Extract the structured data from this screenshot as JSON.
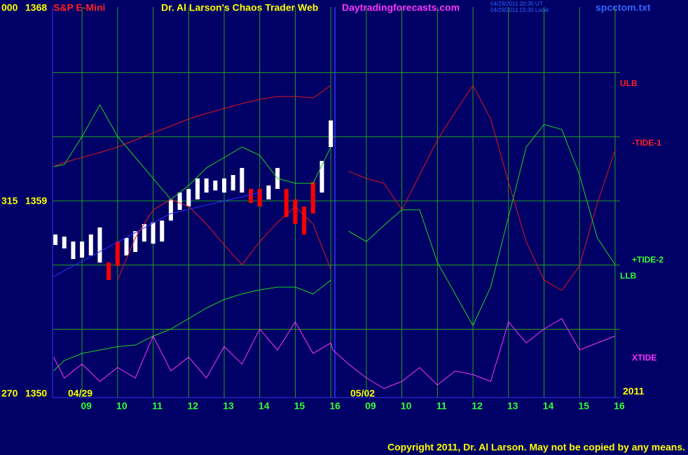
{
  "chart_data": {
    "type": "line",
    "header": {
      "prefix_price": "000",
      "price_top": "1368",
      "symbol": "S&P E-Mini",
      "title": "Dr. Al Larson's Chaos Trader Web",
      "site": "Daytradingforecasts.com",
      "time_ut": "04/29/2011 20:30 UT",
      "time_local": "04/29/2011 15:30 Local",
      "file": "spcctom.txt"
    },
    "y_tick_prefixes": [
      "270",
      "315",
      "000"
    ],
    "yticks": [
      1350,
      1359,
      1368
    ],
    "ygrid": [
      1353,
      1356,
      1359,
      1362,
      1365
    ],
    "ylim": [
      1350,
      1368
    ],
    "xlim": [
      -0.85,
      15.1
    ],
    "xticks": [
      {
        "value": 0,
        "label": "09"
      },
      {
        "value": 1,
        "label": "10"
      },
      {
        "value": 2,
        "label": "11"
      },
      {
        "value": 3,
        "label": "12"
      },
      {
        "value": 4,
        "label": "13"
      },
      {
        "value": 5,
        "label": "14"
      },
      {
        "value": 6,
        "label": "15"
      },
      {
        "value": 7,
        "label": "16"
      },
      {
        "value": 8,
        "label": "09"
      },
      {
        "value": 9,
        "label": "10"
      },
      {
        "value": 10,
        "label": "11"
      },
      {
        "value": 11,
        "label": "12"
      },
      {
        "value": 12,
        "label": "13"
      },
      {
        "value": 13,
        "label": "14"
      },
      {
        "value": 14,
        "label": "15"
      },
      {
        "value": 15,
        "label": "16"
      }
    ],
    "grid": true,
    "dates": [
      "04/29",
      "05/02",
      "2011"
    ],
    "x": [
      -0.8,
      -0.5,
      0,
      0.5,
      1,
      1.5,
      2,
      2.5,
      3,
      3.5,
      4,
      4.5,
      5,
      5.5,
      6,
      6.5,
      7,
      7.06,
      7.5,
      8,
      8.5,
      9,
      9.5,
      10,
      10.5,
      11,
      11.5,
      12,
      12.5,
      13,
      13.5,
      14,
      14.5,
      15
    ],
    "series": [
      {
        "name": "ULB",
        "color": "#e01818",
        "values": [
          1360.6,
          1360.8,
          1361.03,
          1361.26,
          1361.52,
          1361.85,
          1362.18,
          1362.5,
          1362.83,
          1363.09,
          1363.32,
          1363.55,
          1363.75,
          1363.88,
          1363.88,
          1363.81,
          1364.4,
          null,
          null,
          null,
          null,
          null,
          null,
          null,
          null,
          null,
          null,
          null,
          null,
          null,
          null,
          null,
          null,
          null
        ]
      },
      {
        "name": "-TIDE-1",
        "color": "#e01818",
        "values": [
          null,
          null,
          null,
          null,
          1355.3,
          1357.27,
          1358.58,
          1359.07,
          1358.74,
          1357.92,
          1356.94,
          1356.02,
          1357.1,
          1357.99,
          1358.74,
          1357.92,
          1355.79,
          null,
          1360.38,
          1360.05,
          1359.82,
          1358.58,
          1360.21,
          1361.85,
          1363.16,
          1364.4,
          1362.83,
          1359.88,
          1357.1,
          1355.3,
          1354.81,
          1355.96,
          1358.9,
          1361.36
        ]
      },
      {
        "name": "+TIDE-2",
        "color": "#20d020",
        "values": [
          1360.6,
          1360.7,
          1362.01,
          1363.49,
          1362.01,
          1361.03,
          1360.05,
          1359.07,
          1359.72,
          1360.54,
          1361.03,
          1361.52,
          1361.13,
          1360.05,
          1359.82,
          1359.82,
          1361.52,
          null,
          1357.59,
          1357.1,
          1357.86,
          1358.58,
          1358.58,
          1356.12,
          1354.65,
          1353.17,
          1354.97,
          1358.25,
          1361.52,
          1362.57,
          1362.34,
          1360.21,
          1357.27,
          1356.02
        ]
      },
      {
        "name": "LLB",
        "color": "#20d020",
        "values": [
          1351.05,
          1351.54,
          1351.87,
          1352.03,
          1352.19,
          1352.26,
          1352.68,
          1353.01,
          1353.5,
          1353.99,
          1354.39,
          1354.65,
          1354.84,
          1354.97,
          1354.97,
          1354.65,
          1355.3,
          null,
          null,
          null,
          null,
          null,
          null,
          null,
          null,
          null,
          null,
          null,
          null,
          null,
          null,
          null,
          null,
          null
        ]
      },
      {
        "name": "XTIDE",
        "color": "#ff33ff",
        "values": [
          1351.7,
          1350.72,
          1351.37,
          1350.56,
          1351.21,
          1350.72,
          1352.68,
          1351.05,
          1351.7,
          1350.72,
          1352.19,
          1351.37,
          1353.01,
          1352.03,
          1353.34,
          1351.87,
          1352.36,
          1352.03,
          1351.37,
          1350.72,
          1350.23,
          1350.56,
          1351.21,
          1350.39,
          1351.05,
          1350.88,
          1350.56,
          1353.34,
          1352.36,
          1353.01,
          1353.5,
          1352.03,
          1352.36,
          1352.68
        ]
      }
    ],
    "trend": {
      "color": "#3030ff",
      "x": [
        -0.8,
        2.5,
        5
      ],
      "values": [
        1355.47,
        1358.41,
        1359.39
      ]
    },
    "price": {
      "x": [
        -0.75,
        -0.5,
        -0.25,
        0,
        0.25,
        0.5,
        0.75,
        1,
        1.25,
        1.5,
        1.75,
        2,
        2.25,
        2.5,
        2.75,
        3,
        3.25,
        3.5,
        3.75,
        4,
        4.25,
        4.5,
        4.75,
        5,
        5.25,
        5.5,
        5.75,
        6,
        6.25,
        6.5,
        6.75,
        7
      ],
      "high": [
        1357.43,
        1357.33,
        1357.1,
        1357.1,
        1357.43,
        1357.76,
        1356.12,
        1357.1,
        1357.27,
        1357.59,
        1357.92,
        1357.99,
        1358.08,
        1359.07,
        1359.39,
        1359.56,
        1360.05,
        1360.05,
        1359.95,
        1360.05,
        1360.21,
        1360.54,
        1359.56,
        1359.56,
        1359.72,
        1360.54,
        1359.56,
        1359.07,
        1358.74,
        1359.88,
        1360.87,
        1362.76
      ],
      "low": [
        1356.94,
        1356.78,
        1356.28,
        1356.35,
        1356.45,
        1356.12,
        1355.3,
        1355.96,
        1356.45,
        1356.61,
        1357.1,
        1357.0,
        1357.1,
        1358.08,
        1358.58,
        1358.74,
        1359.07,
        1359.39,
        1359.49,
        1359.39,
        1359.49,
        1359.39,
        1358.9,
        1358.74,
        1359.07,
        1359.56,
        1358.25,
        1357.92,
        1357.43,
        1358.41,
        1359.39,
        1361.52
      ],
      "colors": [
        "#ffffff",
        "#ffffff",
        "#ffffff",
        "#ffffff",
        "#ffffff",
        "#ffffff",
        "#ff0000",
        "#ff0000",
        "#ffffff",
        "#ffffff",
        "#ffffff",
        "#ffffff",
        "#ffffff",
        "#ffffff",
        "#ffffff",
        "#ffffff",
        "#ffffff",
        "#ffffff",
        "#ffffff",
        "#ffffff",
        "#ffffff",
        "#ffffff",
        "#ff0000",
        "#ff0000",
        "#ffffff",
        "#ffffff",
        "#ff0000",
        "#ff0000",
        "#ff0000",
        "#ff0000",
        "#ffffff",
        "#ffffff"
      ]
    },
    "copyright": "Copyright 2011, Dr. Al Larson. May not be copied by any means."
  }
}
